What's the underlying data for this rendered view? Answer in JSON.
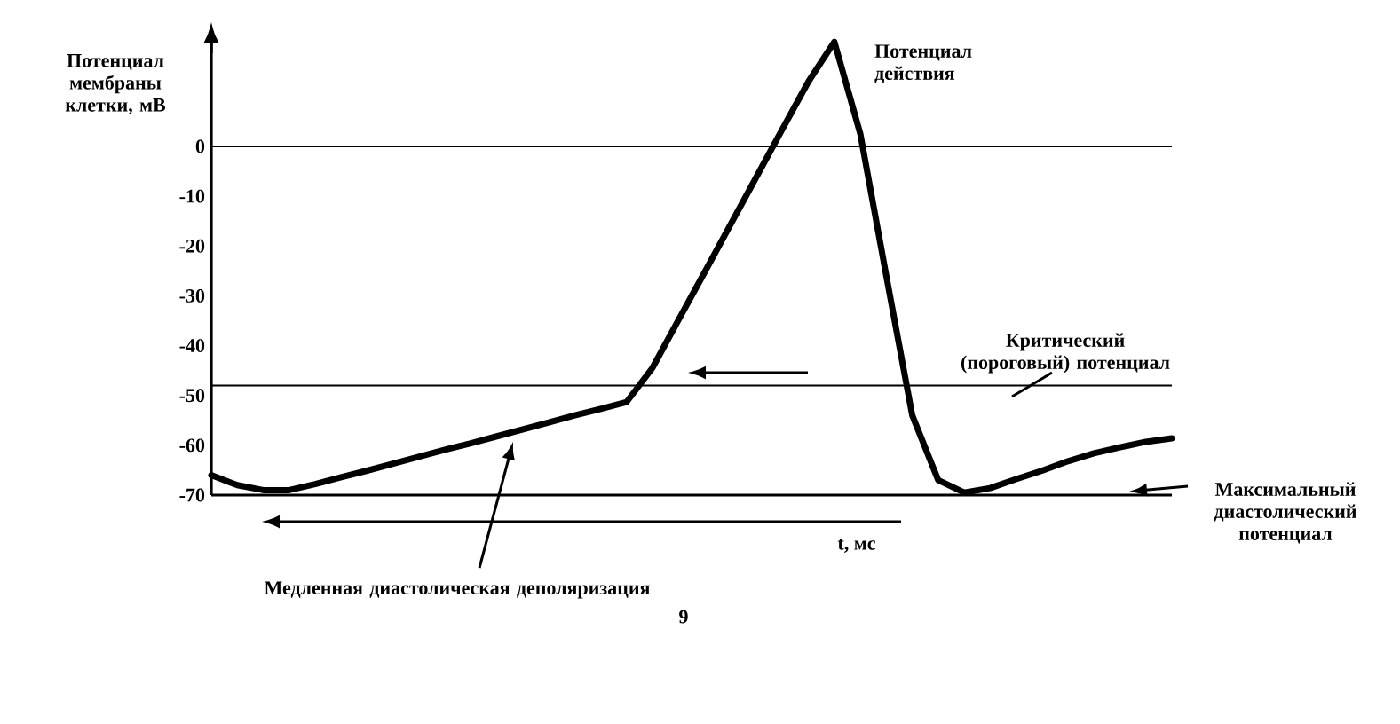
{
  "chart_data": {
    "type": "line",
    "ylabel": "Потенциал мембраны клетки, мВ",
    "xlabel": "t, мс",
    "categories": [
      null,
      null,
      null,
      null,
      null,
      null,
      null,
      null,
      null,
      null,
      null,
      null,
      null,
      null,
      null,
      null,
      null,
      null,
      null,
      null,
      null,
      null,
      null,
      null,
      null,
      null,
      null,
      null,
      null,
      null,
      null,
      null,
      null,
      null,
      null,
      null,
      null,
      null
    ],
    "values": [
      -66,
      -68,
      -69,
      -69,
      -67.8,
      -66.4,
      -65.1,
      -63.7,
      -62.3,
      -60.9,
      -59.6,
      -58.2,
      -56.8,
      -55.4,
      -54,
      -52.7,
      -51.3,
      -44.4,
      -34.8,
      -25.3,
      -15.7,
      -6.1,
      3.5,
      13,
      21,
      2.5,
      -26,
      -54,
      -67,
      -69.5,
      -68.6,
      -66.8,
      -65.1,
      -63.2,
      -61.6,
      -60.4,
      -59.3,
      -58.6
    ],
    "color": "#000000",
    "marker": "none",
    "line_style": "solid",
    "ylim": [
      -70,
      22
    ],
    "yticks": [
      -70,
      -60,
      -50,
      -40,
      -30,
      -20,
      -10,
      0
    ],
    "ref_lines": [
      {
        "axis": "y",
        "value": 0
      },
      {
        "axis": "y",
        "value": -48,
        "label": "Критический (пороговый) потенциал"
      }
    ],
    "annotations": [
      "Потенциал действия",
      "Медленная диастолическая деполяризация",
      "9",
      "Максимальный диастолический потенциал"
    ]
  }
}
